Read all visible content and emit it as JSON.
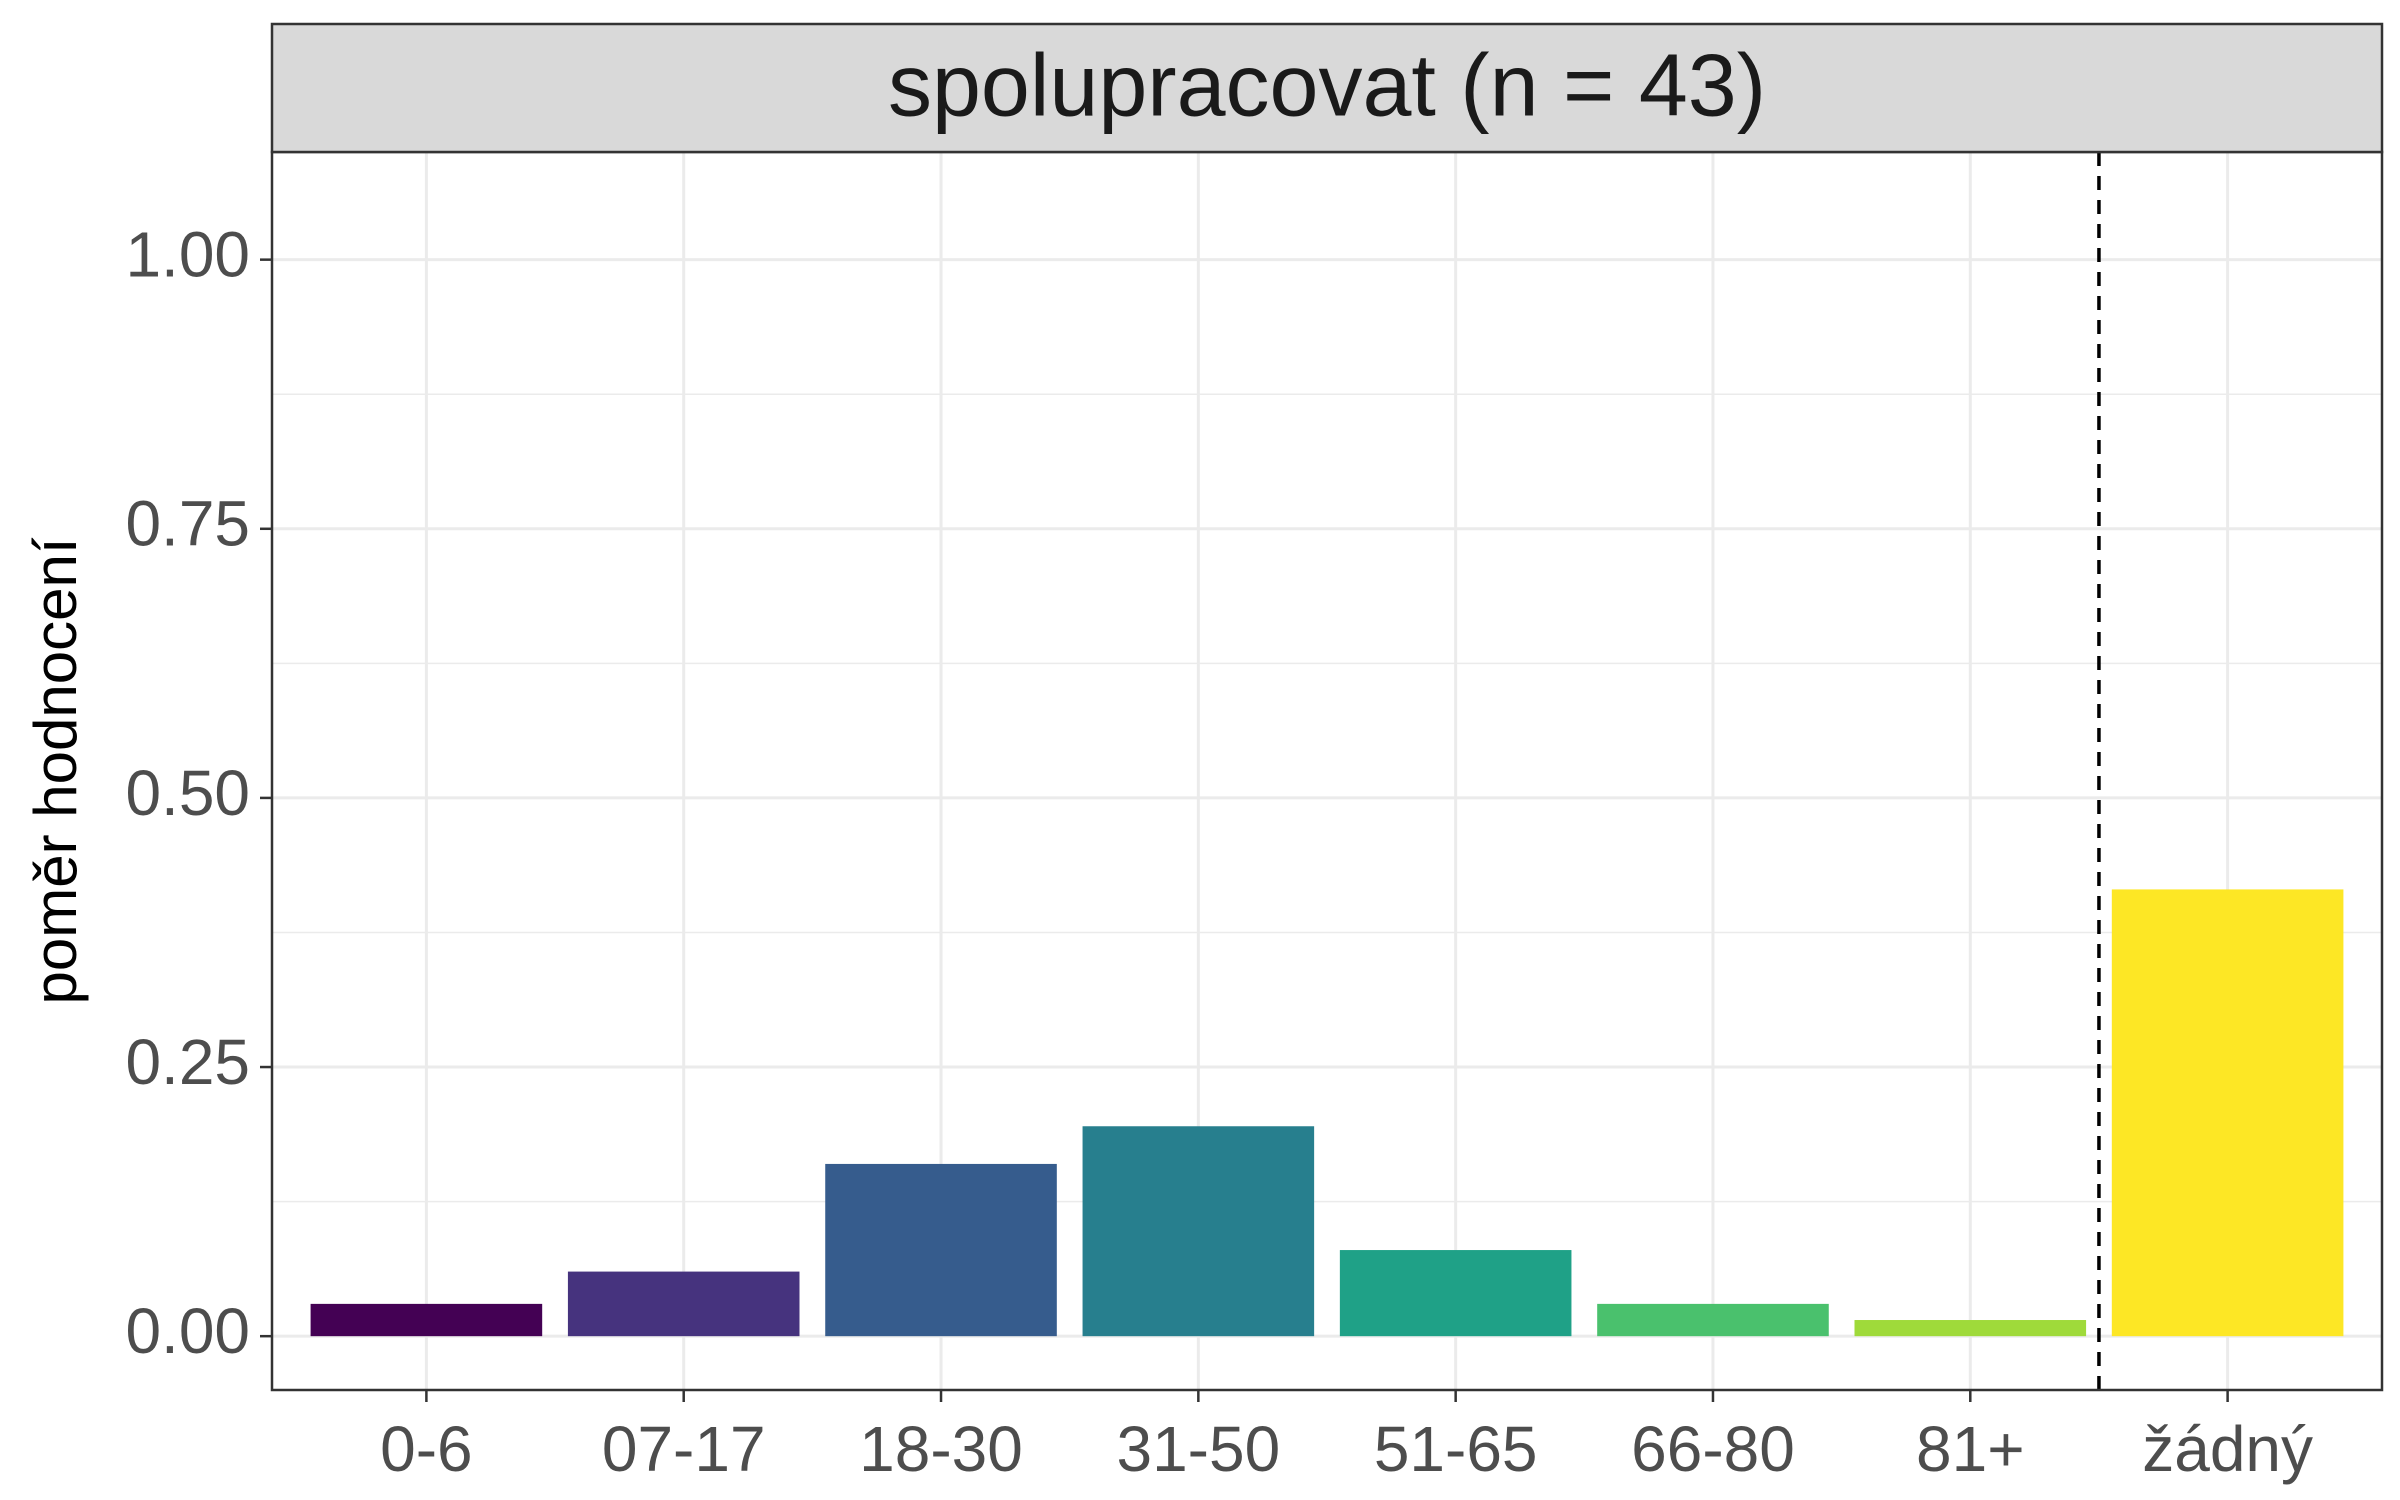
{
  "chart_data": {
    "type": "bar",
    "facet_title": "spolupracovat (n = 43)",
    "ylabel": "poměr hodnocení",
    "xlabel": "",
    "categories": [
      "0-6",
      "07-17",
      "18-30",
      "31-50",
      "51-65",
      "66-80",
      "81+",
      "žádný"
    ],
    "values": [
      0.03,
      0.06,
      0.16,
      0.195,
      0.08,
      0.03,
      0.015,
      0.415
    ],
    "colors": [
      "#440154",
      "#46337E",
      "#365C8D",
      "#277F8E",
      "#1FA187",
      "#4AC16D",
      "#9FDA3A",
      "#FDE725"
    ],
    "ylim": [
      -0.05,
      1.1
    ],
    "yticks": [
      0.0,
      0.25,
      0.5,
      0.75,
      1.0
    ],
    "ytick_labels": [
      "0.00",
      "0.25",
      "0.50",
      "0.75",
      "1.00"
    ],
    "reference_line": {
      "after_category_index": 6,
      "style": "dashed"
    },
    "grid": true,
    "legend": "none"
  }
}
